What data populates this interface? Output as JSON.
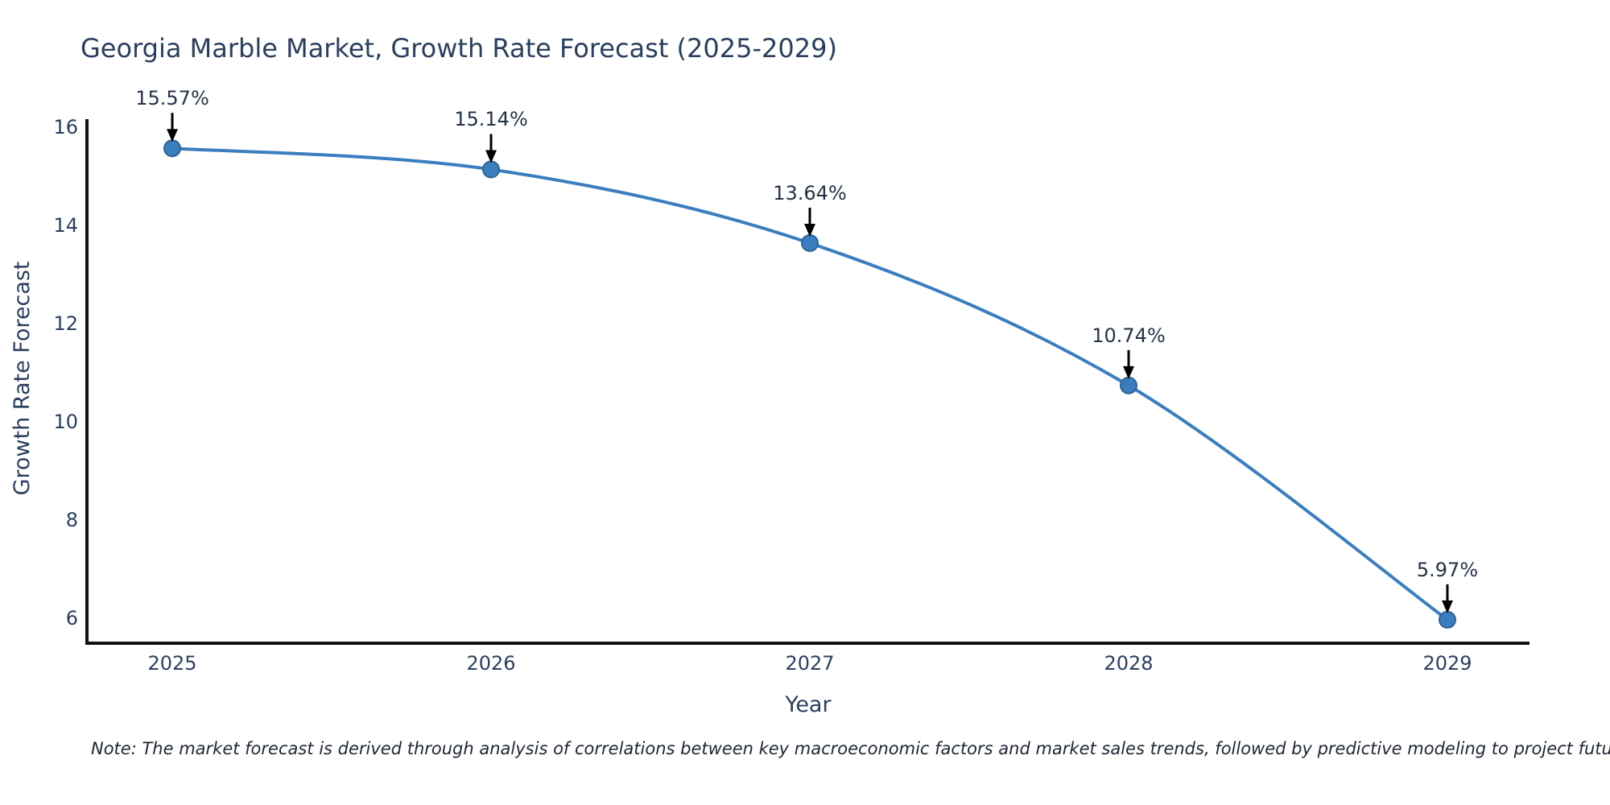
{
  "chart": {
    "title": "Georgia Marble Market, Growth Rate Forecast (2025-2029)",
    "x_axis_label": "Year",
    "y_axis_label": "Growth Rate Forecast",
    "note": "Note: The market forecast is derived through analysis of correlations between key macroeconomic factors and market sales trends, followed by predictive modeling to project future sales"
  },
  "chart_data": {
    "type": "line",
    "title": "Georgia Marble Market, Growth Rate Forecast (2025-2029)",
    "xlabel": "Year",
    "ylabel": "Growth Rate Forecast",
    "x": [
      2025,
      2026,
      2027,
      2028,
      2029
    ],
    "values": [
      15.57,
      15.14,
      13.64,
      10.74,
      5.97
    ],
    "point_labels": [
      "15.57%",
      "15.14%",
      "13.64%",
      "10.74%",
      "5.97%"
    ],
    "x_tick_labels": [
      "2025",
      "2026",
      "2027",
      "2028",
      "2029"
    ],
    "y_ticks": [
      6,
      8,
      10,
      12,
      14,
      16
    ],
    "ylim": [
      5.4,
      16.2
    ],
    "grid": false,
    "legend": "none",
    "line_shape": "spline",
    "colors": {
      "line": "#3a7ebf",
      "marker_fill": "#3a7ebf",
      "marker_edge": "#2f6496",
      "axis_line": "#111111",
      "arrow": "#000000",
      "text": "#2a3f5f",
      "background": "#ffffff"
    }
  }
}
